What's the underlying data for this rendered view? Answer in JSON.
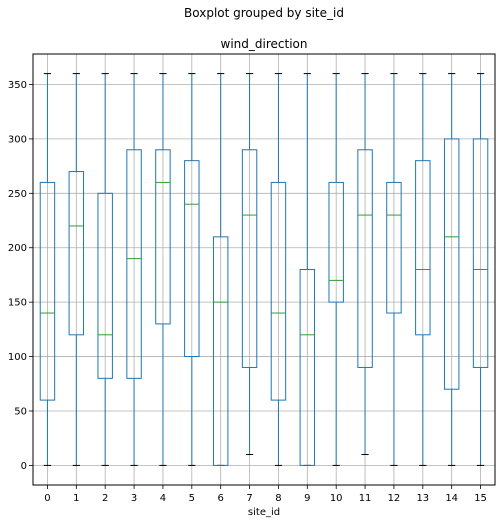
{
  "chart_data": {
    "type": "boxplot",
    "suptitle": "Boxplot grouped by site_id",
    "title": "wind_direction",
    "xlabel": "site_id",
    "ylabel": "",
    "categories": [
      "0",
      "1",
      "2",
      "3",
      "4",
      "5",
      "6",
      "7",
      "8",
      "9",
      "10",
      "11",
      "12",
      "13",
      "14",
      "15"
    ],
    "ylim": [
      -18,
      378
    ],
    "yticks": [
      0,
      50,
      100,
      150,
      200,
      250,
      300,
      350
    ],
    "grid": true,
    "colors": {
      "box": "#1f77b4",
      "median": "#2ca02c",
      "cap": "#000000",
      "grid": "#b0b0b0"
    },
    "boxes": [
      {
        "site": "0",
        "whislo": 0,
        "q1": 60,
        "med": 140,
        "q3": 260,
        "whishi": 360
      },
      {
        "site": "1",
        "whislo": 0,
        "q1": 120,
        "med": 220,
        "q3": 270,
        "whishi": 360
      },
      {
        "site": "2",
        "whislo": 0,
        "q1": 80,
        "med": 120,
        "q3": 250,
        "whishi": 360
      },
      {
        "site": "3",
        "whislo": 0,
        "q1": 80,
        "med": 190,
        "q3": 290,
        "whishi": 360
      },
      {
        "site": "4",
        "whislo": 0,
        "q1": 130,
        "med": 260,
        "q3": 290,
        "whishi": 360
      },
      {
        "site": "5",
        "whislo": 0,
        "q1": 100,
        "med": 240,
        "q3": 280,
        "whishi": 360
      },
      {
        "site": "6",
        "whislo": 0,
        "q1": 0,
        "med": 150,
        "q3": 210,
        "whishi": 360
      },
      {
        "site": "7",
        "whislo": 10,
        "q1": 90,
        "med": 230,
        "q3": 290,
        "whishi": 360
      },
      {
        "site": "8",
        "whislo": 0,
        "q1": 60,
        "med": 140,
        "q3": 260,
        "whishi": 360
      },
      {
        "site": "9",
        "whislo": 0,
        "q1": 0,
        "med": 120,
        "q3": 180,
        "whishi": 360
      },
      {
        "site": "10",
        "whislo": 0,
        "q1": 150,
        "med": 170,
        "q3": 260,
        "whishi": 360
      },
      {
        "site": "11",
        "whislo": 10,
        "q1": 90,
        "med": 230,
        "q3": 290,
        "whishi": 360
      },
      {
        "site": "12",
        "whislo": 0,
        "q1": 140,
        "med": 230,
        "q3": 260,
        "whishi": 360
      },
      {
        "site": "13",
        "whislo": 0,
        "q1": 120,
        "med": 180,
        "q3": 280,
        "whishi": 360
      },
      {
        "site": "14",
        "whislo": 0,
        "q1": 70,
        "med": 210,
        "q3": 300,
        "whishi": 360
      },
      {
        "site": "15",
        "whislo": 0,
        "q1": 90,
        "med": 180,
        "q3": 300,
        "whishi": 360
      }
    ]
  }
}
